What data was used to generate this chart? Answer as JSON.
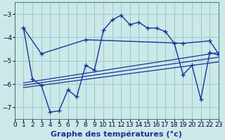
{
  "background_color": "#cce8e8",
  "grid_color": "#99cccc",
  "line_color": "#1a3399",
  "xlabel": "Graphe des températures (°c)",
  "xlabel_fontsize": 8,
  "tick_fontsize": 6.5,
  "ylim": [
    -7.5,
    -2.5
  ],
  "xlim": [
    0,
    23
  ],
  "yticks": [
    -7,
    -6,
    -5,
    -4,
    -3
  ],
  "xticks": [
    0,
    1,
    2,
    3,
    4,
    5,
    6,
    7,
    8,
    9,
    10,
    11,
    12,
    13,
    14,
    15,
    16,
    17,
    18,
    19,
    20,
    21,
    22,
    23
  ],
  "series1_x": [
    1,
    2,
    3,
    4,
    5,
    6,
    7,
    8,
    9,
    10,
    11,
    12,
    13,
    14,
    15,
    16,
    17,
    18,
    19,
    20,
    21,
    22,
    23
  ],
  "series1_y": [
    -3.6,
    -5.8,
    -6.05,
    -7.2,
    -7.15,
    -6.25,
    -6.55,
    -5.2,
    -5.4,
    -3.7,
    -3.25,
    -3.05,
    -3.45,
    -3.35,
    -3.6,
    -3.6,
    -3.75,
    -4.25,
    -5.6,
    -5.2,
    -6.65,
    -4.65,
    -4.75
  ],
  "series2_x": [
    1,
    3,
    8,
    19,
    22,
    23
  ],
  "series2_y": [
    -3.6,
    -4.7,
    -4.1,
    -4.25,
    -4.15,
    -4.7
  ],
  "series3_x": [
    1,
    23
  ],
  "series3_y": [
    -5.95,
    -4.65
  ],
  "series4_x": [
    1,
    23
  ],
  "series4_y": [
    -6.05,
    -4.85
  ],
  "series5_x": [
    1,
    23
  ],
  "series5_y": [
    -6.15,
    -5.05
  ]
}
